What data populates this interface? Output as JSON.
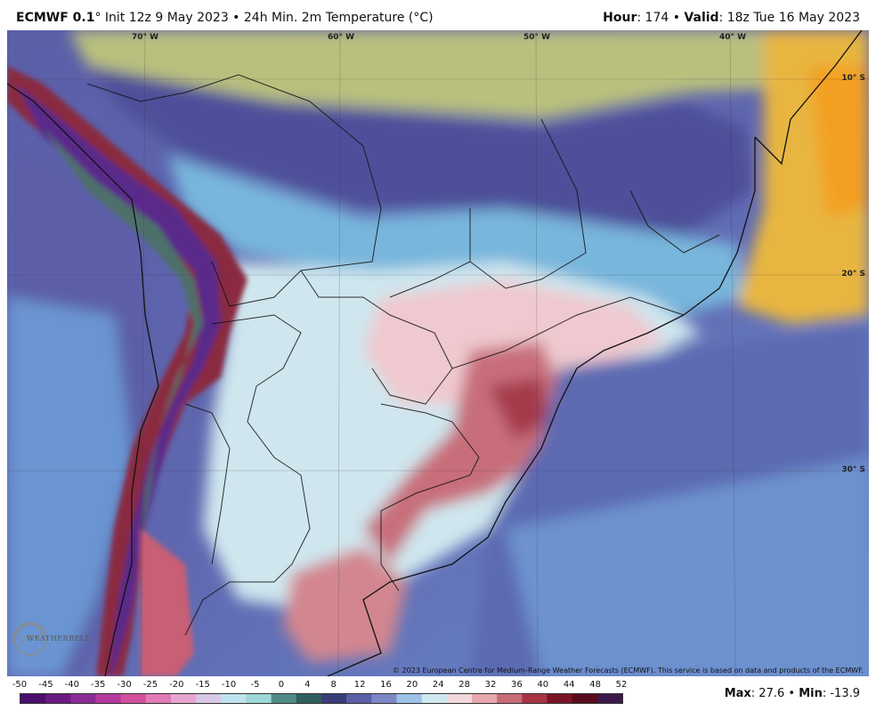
{
  "header": {
    "model": "ECMWF 0.1",
    "init_text": "° Init 12z 9 May 2023 • 24h Min. 2m Temperature (°C)",
    "hour_label": "Hour",
    "hour_value": ": 174 • ",
    "valid_label": "Valid",
    "valid_value": ": 18z Tue 16 May 2023"
  },
  "map": {
    "lon_labels": [
      "70° W",
      "60° W",
      "50° W",
      "40° W"
    ],
    "lat_labels": [
      "10° S",
      "20° S",
      "30° S"
    ],
    "copyright": "© 2023 European Centre for Medium-Range Weather Forecasts (ECMWF). This service is based on data and products of the ECMWF.",
    "logo_text": "WEATHERBELL"
  },
  "colorbar": {
    "ticks": [
      "-50",
      "-45",
      "-40",
      "-35",
      "-30",
      "-25",
      "-20",
      "-15",
      "-10",
      "-5",
      "0",
      "4",
      "8",
      "12",
      "16",
      "20",
      "24",
      "28",
      "32",
      "36",
      "40",
      "44",
      "48",
      "52"
    ],
    "colors": [
      "#4b0f6e",
      "#6a1a84",
      "#8b2b96",
      "#b43a9c",
      "#d24f9c",
      "#e07bb6",
      "#e7a5cf",
      "#d9c7e6",
      "#bfe3ee",
      "#9ed7d8",
      "#4e8b86",
      "#2f5f5c",
      "#3a3d78",
      "#5b5fa5",
      "#7d87c4",
      "#9cc2e6",
      "#cfe8f0",
      "#f0d8dc",
      "#e6a7ad",
      "#c96b77",
      "#a83445",
      "#7c1427",
      "#5a0c1f",
      "#3b1a4a"
    ]
  },
  "stats": {
    "max_label": "Max",
    "max_value": ": 27.6 • ",
    "min_label": "Min",
    "min_value": ": -13.9"
  }
}
